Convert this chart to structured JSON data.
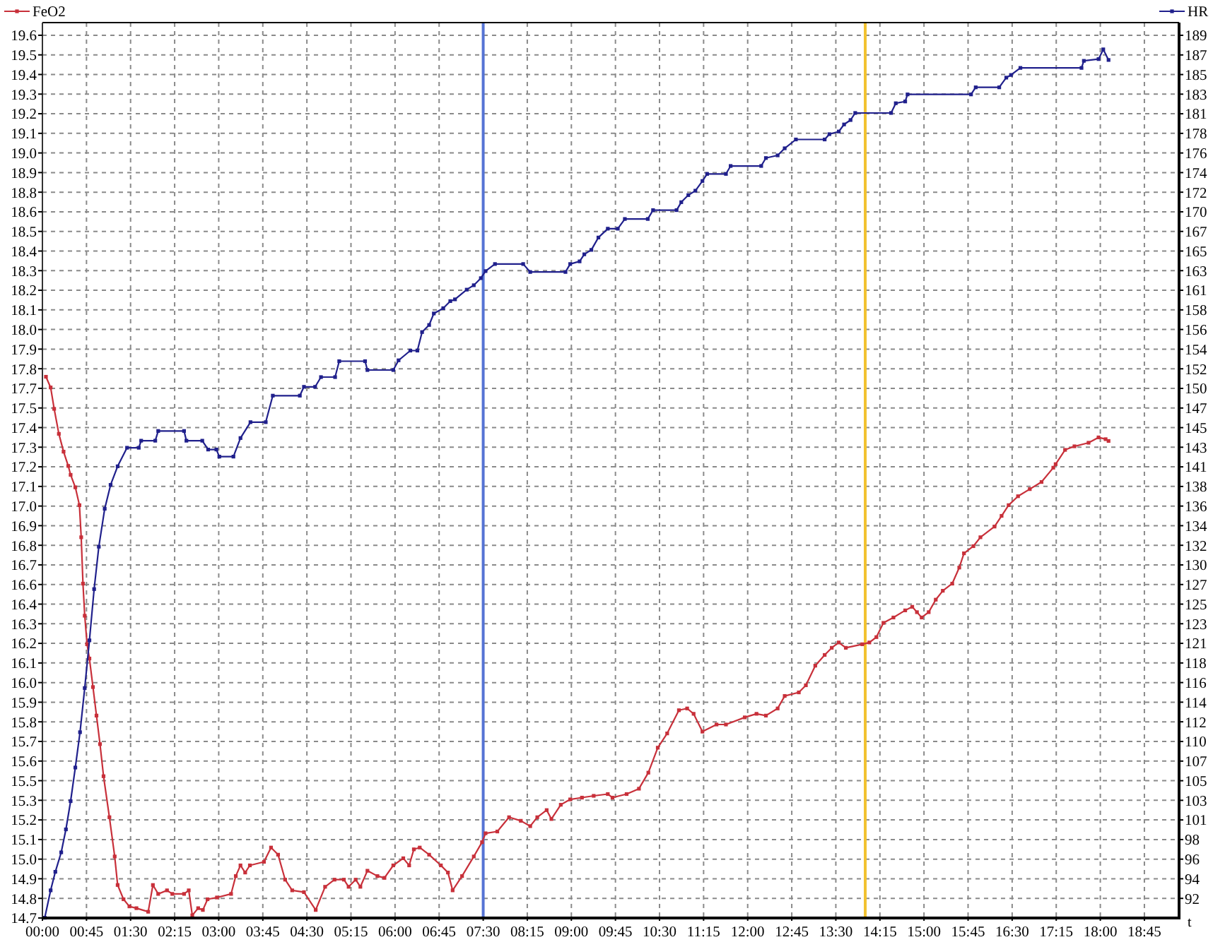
{
  "chart_data": {
    "type": "line",
    "xlabel": "t",
    "legend": "top",
    "grid": true,
    "marker": "square",
    "xlim": [
      0,
      19.34
    ],
    "xticks": [
      {
        "value": 0,
        "label": "00:00"
      },
      {
        "value": 0.75,
        "label": "00:45"
      },
      {
        "value": 1.5,
        "label": "01:30"
      },
      {
        "value": 2.25,
        "label": "02:15"
      },
      {
        "value": 3,
        "label": "03:00"
      },
      {
        "value": 3.75,
        "label": "03:45"
      },
      {
        "value": 4.5,
        "label": "04:30"
      },
      {
        "value": 5.25,
        "label": "05:15"
      },
      {
        "value": 6,
        "label": "06:00"
      },
      {
        "value": 6.75,
        "label": "06:45"
      },
      {
        "value": 7.5,
        "label": "07:30"
      },
      {
        "value": 8.25,
        "label": "08:15"
      },
      {
        "value": 9,
        "label": "09:00"
      },
      {
        "value": 9.75,
        "label": "09:45"
      },
      {
        "value": 10.5,
        "label": "10:30"
      },
      {
        "value": 11.25,
        "label": "11:15"
      },
      {
        "value": 12,
        "label": "12:00"
      },
      {
        "value": 12.75,
        "label": "12:45"
      },
      {
        "value": 13.5,
        "label": "13:30"
      },
      {
        "value": 14.25,
        "label": "14:15"
      },
      {
        "value": 15,
        "label": "15:00"
      },
      {
        "value": 15.75,
        "label": "15:45"
      },
      {
        "value": 16.5,
        "label": "16:30"
      },
      {
        "value": 17.25,
        "label": "17:15"
      },
      {
        "value": 18,
        "label": "18:00"
      },
      {
        "value": 18.75,
        "label": "18:45"
      }
    ],
    "ylim": [
      14.685,
      19.706
    ],
    "yticks": [
      {
        "value": 14.685,
        "label": "14.7"
      },
      {
        "value": 14.795,
        "label": "14.8"
      },
      {
        "value": 14.905,
        "label": "14.9"
      },
      {
        "value": 15.015,
        "label": "15.0"
      },
      {
        "value": 15.125,
        "label": "15.1"
      },
      {
        "value": 15.235,
        "label": "15.2"
      },
      {
        "value": 15.345,
        "label": "15.3"
      },
      {
        "value": 15.455,
        "label": "15.5"
      },
      {
        "value": 15.565,
        "label": "15.6"
      },
      {
        "value": 15.675,
        "label": "15.7"
      },
      {
        "value": 15.785,
        "label": "15.8"
      },
      {
        "value": 15.895,
        "label": "15.9"
      },
      {
        "value": 16.005,
        "label": "16.0"
      },
      {
        "value": 16.115,
        "label": "16.1"
      },
      {
        "value": 16.225,
        "label": "16.2"
      },
      {
        "value": 16.335,
        "label": "16.3"
      },
      {
        "value": 16.445,
        "label": "16.4"
      },
      {
        "value": 16.555,
        "label": "16.6"
      },
      {
        "value": 16.665,
        "label": "16.7"
      },
      {
        "value": 16.775,
        "label": "16.8"
      },
      {
        "value": 16.885,
        "label": "16.9"
      },
      {
        "value": 16.995,
        "label": "17.0"
      },
      {
        "value": 17.105,
        "label": "17.1"
      },
      {
        "value": 17.215,
        "label": "17.2"
      },
      {
        "value": 17.325,
        "label": "17.3"
      },
      {
        "value": 17.435,
        "label": "17.4"
      },
      {
        "value": 17.545,
        "label": "17.5"
      },
      {
        "value": 17.655,
        "label": "17.7"
      },
      {
        "value": 17.765,
        "label": "17.8"
      },
      {
        "value": 17.875,
        "label": "17.9"
      },
      {
        "value": 17.985,
        "label": "18.0"
      },
      {
        "value": 18.095,
        "label": "18.1"
      },
      {
        "value": 18.205,
        "label": "18.2"
      },
      {
        "value": 18.315,
        "label": "18.3"
      },
      {
        "value": 18.425,
        "label": "18.4"
      },
      {
        "value": 18.535,
        "label": "18.5"
      },
      {
        "value": 18.645,
        "label": "18.6"
      },
      {
        "value": 18.755,
        "label": "18.8"
      },
      {
        "value": 18.865,
        "label": "18.9"
      },
      {
        "value": 18.975,
        "label": "19.0"
      },
      {
        "value": 19.085,
        "label": "19.1"
      },
      {
        "value": 19.195,
        "label": "19.2"
      },
      {
        "value": 19.305,
        "label": "19.3"
      },
      {
        "value": 19.415,
        "label": "19.4"
      },
      {
        "value": 19.525,
        "label": "19.5"
      },
      {
        "value": 19.635,
        "label": "19.6"
      }
    ],
    "y2lim": [
      89.57,
      190.93
    ],
    "y2ticks": [
      {
        "value": 91.79,
        "label": "92"
      },
      {
        "value": 94.01,
        "label": "94"
      },
      {
        "value": 96.23,
        "label": "96"
      },
      {
        "value": 98.45,
        "label": "98"
      },
      {
        "value": 100.67,
        "label": "101"
      },
      {
        "value": 102.89,
        "label": "103"
      },
      {
        "value": 105.11,
        "label": "105"
      },
      {
        "value": 107.33,
        "label": "107"
      },
      {
        "value": 109.55,
        "label": "110"
      },
      {
        "value": 111.78,
        "label": "112"
      },
      {
        "value": 114,
        "label": "114"
      },
      {
        "value": 116.22,
        "label": "116"
      },
      {
        "value": 118.44,
        "label": "118"
      },
      {
        "value": 120.66,
        "label": "121"
      },
      {
        "value": 122.88,
        "label": "123"
      },
      {
        "value": 125.1,
        "label": "125"
      },
      {
        "value": 127.32,
        "label": "127"
      },
      {
        "value": 129.54,
        "label": "130"
      },
      {
        "value": 131.76,
        "label": "132"
      },
      {
        "value": 133.98,
        "label": "134"
      },
      {
        "value": 136.2,
        "label": "136"
      },
      {
        "value": 138.42,
        "label": "138"
      },
      {
        "value": 140.64,
        "label": "141"
      },
      {
        "value": 142.86,
        "label": "143"
      },
      {
        "value": 145.08,
        "label": "145"
      },
      {
        "value": 147.3,
        "label": "147"
      },
      {
        "value": 149.52,
        "label": "150"
      },
      {
        "value": 151.74,
        "label": "152"
      },
      {
        "value": 153.96,
        "label": "154"
      },
      {
        "value": 156.19,
        "label": "156"
      },
      {
        "value": 158.41,
        "label": "158"
      },
      {
        "value": 160.63,
        "label": "161"
      },
      {
        "value": 162.85,
        "label": "163"
      },
      {
        "value": 165.07,
        "label": "165"
      },
      {
        "value": 167.29,
        "label": "167"
      },
      {
        "value": 169.51,
        "label": "170"
      },
      {
        "value": 171.73,
        "label": "172"
      },
      {
        "value": 173.95,
        "label": "174"
      },
      {
        "value": 176.17,
        "label": "176"
      },
      {
        "value": 178.39,
        "label": "178"
      },
      {
        "value": 180.61,
        "label": "181"
      },
      {
        "value": 182.83,
        "label": "183"
      },
      {
        "value": 185.05,
        "label": "185"
      },
      {
        "value": 187.27,
        "label": "187"
      },
      {
        "value": 189.49,
        "label": "189"
      }
    ],
    "ref_lines": [
      {
        "axis": "x",
        "value": 7.5,
        "color": "#5573d4"
      },
      {
        "axis": "x",
        "value": 14.0,
        "color": "#f2c230"
      }
    ],
    "series": [
      {
        "name": "FeO2",
        "color": "#c8303a",
        "x": [
          0.06,
          0.14,
          0.2,
          0.28,
          0.36,
          0.44,
          0.48,
          0.56,
          0.63,
          0.66,
          0.69,
          0.72,
          0.76,
          0.8,
          0.86,
          0.92,
          0.98,
          1.04,
          1.14,
          1.23,
          1.28,
          1.38,
          1.48,
          1.6,
          1.8,
          1.88,
          1.97,
          2.12,
          2.21,
          2.41,
          2.49,
          2.55,
          2.65,
          2.73,
          2.81,
          2.97,
          3.21,
          3.29,
          3.37,
          3.45,
          3.53,
          3.77,
          3.89,
          4.01,
          4.13,
          4.25,
          4.45,
          4.65,
          4.81,
          4.97,
          5.13,
          5.21,
          5.33,
          5.41,
          5.53,
          5.7,
          5.82,
          5.97,
          6.14,
          6.24,
          6.32,
          6.42,
          6.58,
          6.78,
          6.9,
          6.98,
          7.14,
          7.34,
          7.48,
          7.54,
          7.74,
          7.94,
          8.14,
          8.3,
          8.42,
          8.58,
          8.66,
          8.82,
          8.98,
          9.18,
          9.38,
          9.62,
          9.7,
          9.94,
          10.15,
          10.31,
          10.47,
          10.63,
          10.83,
          10.97,
          11.08,
          11.23,
          11.47,
          11.63,
          11.95,
          12.15,
          12.31,
          12.51,
          12.63,
          12.87,
          12.99,
          13.15,
          13.31,
          13.43,
          13.55,
          13.67,
          13.95,
          14.07,
          14.19,
          14.31,
          14.48,
          14.68,
          14.8,
          14.88,
          14.96,
          15.08,
          15.2,
          15.32,
          15.48,
          15.6,
          15.68,
          15.84,
          15.96,
          16.2,
          16.32,
          16.44,
          16.6,
          16.8,
          17.0,
          17.2,
          17.24,
          17.4,
          17.56,
          17.8,
          17.97,
          18.09,
          18.14
        ],
        "values": [
          17.72,
          17.66,
          17.54,
          17.4,
          17.3,
          17.22,
          17.17,
          17.1,
          17.0,
          16.82,
          16.56,
          16.38,
          16.22,
          16.14,
          15.98,
          15.82,
          15.66,
          15.48,
          15.25,
          15.03,
          14.87,
          14.79,
          14.75,
          14.74,
          14.72,
          14.87,
          14.82,
          14.84,
          14.82,
          14.82,
          14.84,
          14.7,
          14.74,
          14.73,
          14.79,
          14.8,
          14.82,
          14.92,
          14.98,
          14.94,
          14.98,
          15.0,
          15.08,
          15.04,
          14.9,
          14.84,
          14.83,
          14.73,
          14.86,
          14.9,
          14.9,
          14.86,
          14.9,
          14.86,
          14.95,
          14.92,
          14.91,
          14.98,
          15.02,
          14.98,
          15.07,
          15.08,
          15.04,
          14.98,
          14.94,
          14.84,
          14.92,
          15.03,
          15.11,
          15.16,
          15.17,
          15.25,
          15.23,
          15.2,
          15.25,
          15.29,
          15.24,
          15.32,
          15.35,
          15.36,
          15.37,
          15.38,
          15.36,
          15.38,
          15.41,
          15.5,
          15.64,
          15.72,
          15.85,
          15.86,
          15.83,
          15.73,
          15.77,
          15.77,
          15.81,
          15.83,
          15.82,
          15.86,
          15.93,
          15.95,
          15.99,
          16.1,
          16.16,
          16.2,
          16.23,
          16.2,
          16.22,
          16.23,
          16.26,
          16.34,
          16.37,
          16.41,
          16.43,
          16.4,
          16.37,
          16.4,
          16.47,
          16.52,
          16.56,
          16.65,
          16.73,
          16.77,
          16.82,
          16.88,
          16.94,
          17.0,
          17.05,
          17.09,
          17.13,
          17.21,
          17.23,
          17.31,
          17.33,
          17.35,
          17.38,
          17.37,
          17.36
        ]
      },
      {
        "name": "HR",
        "color": "#20208c",
        "axis": "y2",
        "x": [
          0.04,
          0.14,
          0.22,
          0.32,
          0.4,
          0.48,
          0.56,
          0.64,
          0.72,
          0.8,
          0.88,
          0.96,
          1.06,
          1.16,
          1.28,
          1.44,
          1.64,
          1.68,
          1.92,
          1.97,
          2.41,
          2.45,
          2.72,
          2.82,
          2.96,
          3.01,
          3.25,
          3.37,
          3.54,
          3.8,
          3.92,
          4.38,
          4.45,
          4.64,
          4.74,
          4.98,
          5.05,
          5.49,
          5.53,
          5.97,
          6.06,
          6.26,
          6.38,
          6.46,
          6.58,
          6.66,
          6.82,
          6.94,
          7.02,
          7.22,
          7.34,
          7.46,
          7.54,
          7.7,
          8.18,
          8.3,
          8.9,
          8.98,
          9.14,
          9.22,
          9.34,
          9.46,
          9.62,
          9.79,
          9.91,
          10.3,
          10.39,
          10.79,
          10.87,
          10.99,
          11.11,
          11.23,
          11.31,
          11.63,
          11.71,
          12.23,
          12.31,
          12.51,
          12.63,
          12.82,
          13.31,
          13.39,
          13.55,
          13.64,
          13.75,
          13.83,
          14.44,
          14.52,
          14.68,
          14.72,
          15.8,
          15.88,
          16.28,
          16.4,
          16.48,
          16.64,
          17.68,
          17.72,
          17.97,
          18.05,
          18.14
        ],
        "values": [
          89.6,
          92.7,
          94.8,
          97.0,
          99.6,
          102.8,
          106.6,
          110.6,
          115.6,
          121.0,
          126.8,
          131.6,
          135.9,
          138.6,
          140.7,
          142.8,
          142.8,
          143.6,
          143.6,
          144.7,
          144.7,
          143.6,
          143.6,
          142.6,
          142.6,
          141.8,
          141.8,
          143.9,
          145.7,
          145.7,
          148.7,
          148.7,
          149.7,
          149.7,
          150.8,
          150.8,
          152.6,
          152.6,
          151.6,
          151.6,
          152.7,
          153.8,
          153.8,
          155.9,
          156.7,
          158.0,
          158.6,
          159.4,
          159.6,
          160.7,
          161.2,
          162.0,
          162.8,
          163.6,
          163.6,
          162.7,
          162.7,
          163.6,
          163.9,
          164.7,
          165.2,
          166.6,
          167.6,
          167.6,
          168.7,
          168.7,
          169.7,
          169.7,
          170.6,
          171.4,
          171.9,
          173.0,
          173.8,
          173.8,
          174.7,
          174.7,
          175.6,
          175.9,
          176.7,
          177.7,
          177.7,
          178.3,
          178.6,
          179.4,
          179.9,
          180.7,
          180.7,
          181.8,
          182.0,
          182.8,
          182.8,
          183.6,
          183.6,
          184.7,
          185.0,
          185.8,
          185.8,
          186.6,
          186.8,
          187.9,
          186.7
        ]
      }
    ]
  }
}
